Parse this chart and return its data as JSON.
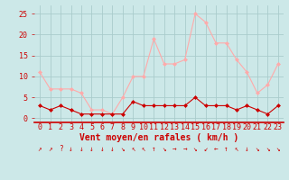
{
  "hours": [
    0,
    1,
    2,
    3,
    4,
    5,
    6,
    7,
    8,
    9,
    10,
    11,
    12,
    13,
    14,
    15,
    16,
    17,
    18,
    19,
    20,
    21,
    22,
    23
  ],
  "vent_moyen": [
    3,
    2,
    3,
    2,
    1,
    1,
    1,
    1,
    1,
    4,
    3,
    3,
    3,
    3,
    3,
    5,
    3,
    3,
    3,
    2,
    3,
    2,
    1,
    3
  ],
  "en_rafales": [
    11,
    7,
    7,
    7,
    6,
    2,
    2,
    1,
    5,
    10,
    10,
    19,
    13,
    13,
    14,
    25,
    23,
    18,
    18,
    14,
    11,
    6,
    8,
    13
  ],
  "color_moyen": "#cc0000",
  "color_rafales": "#ffaaaa",
  "bg_color": "#cce8e8",
  "grid_color": "#aacccc",
  "xlabel": "Vent moyen/en rafales ( km/h )",
  "ylim": [
    -1,
    27
  ],
  "yticks": [
    0,
    5,
    10,
    15,
    20,
    25
  ],
  "tick_fontsize": 6,
  "label_fontsize": 7,
  "arrow_symbols": [
    "↗",
    "↗",
    "?",
    "↓",
    "↓",
    "↓",
    "↓",
    "↓",
    "↘",
    "↖",
    "↖",
    "↑",
    "↘",
    "→",
    "→",
    "↘",
    "↙",
    "←",
    "↑",
    "↖",
    "↓",
    "↘",
    "↘",
    "↘"
  ]
}
